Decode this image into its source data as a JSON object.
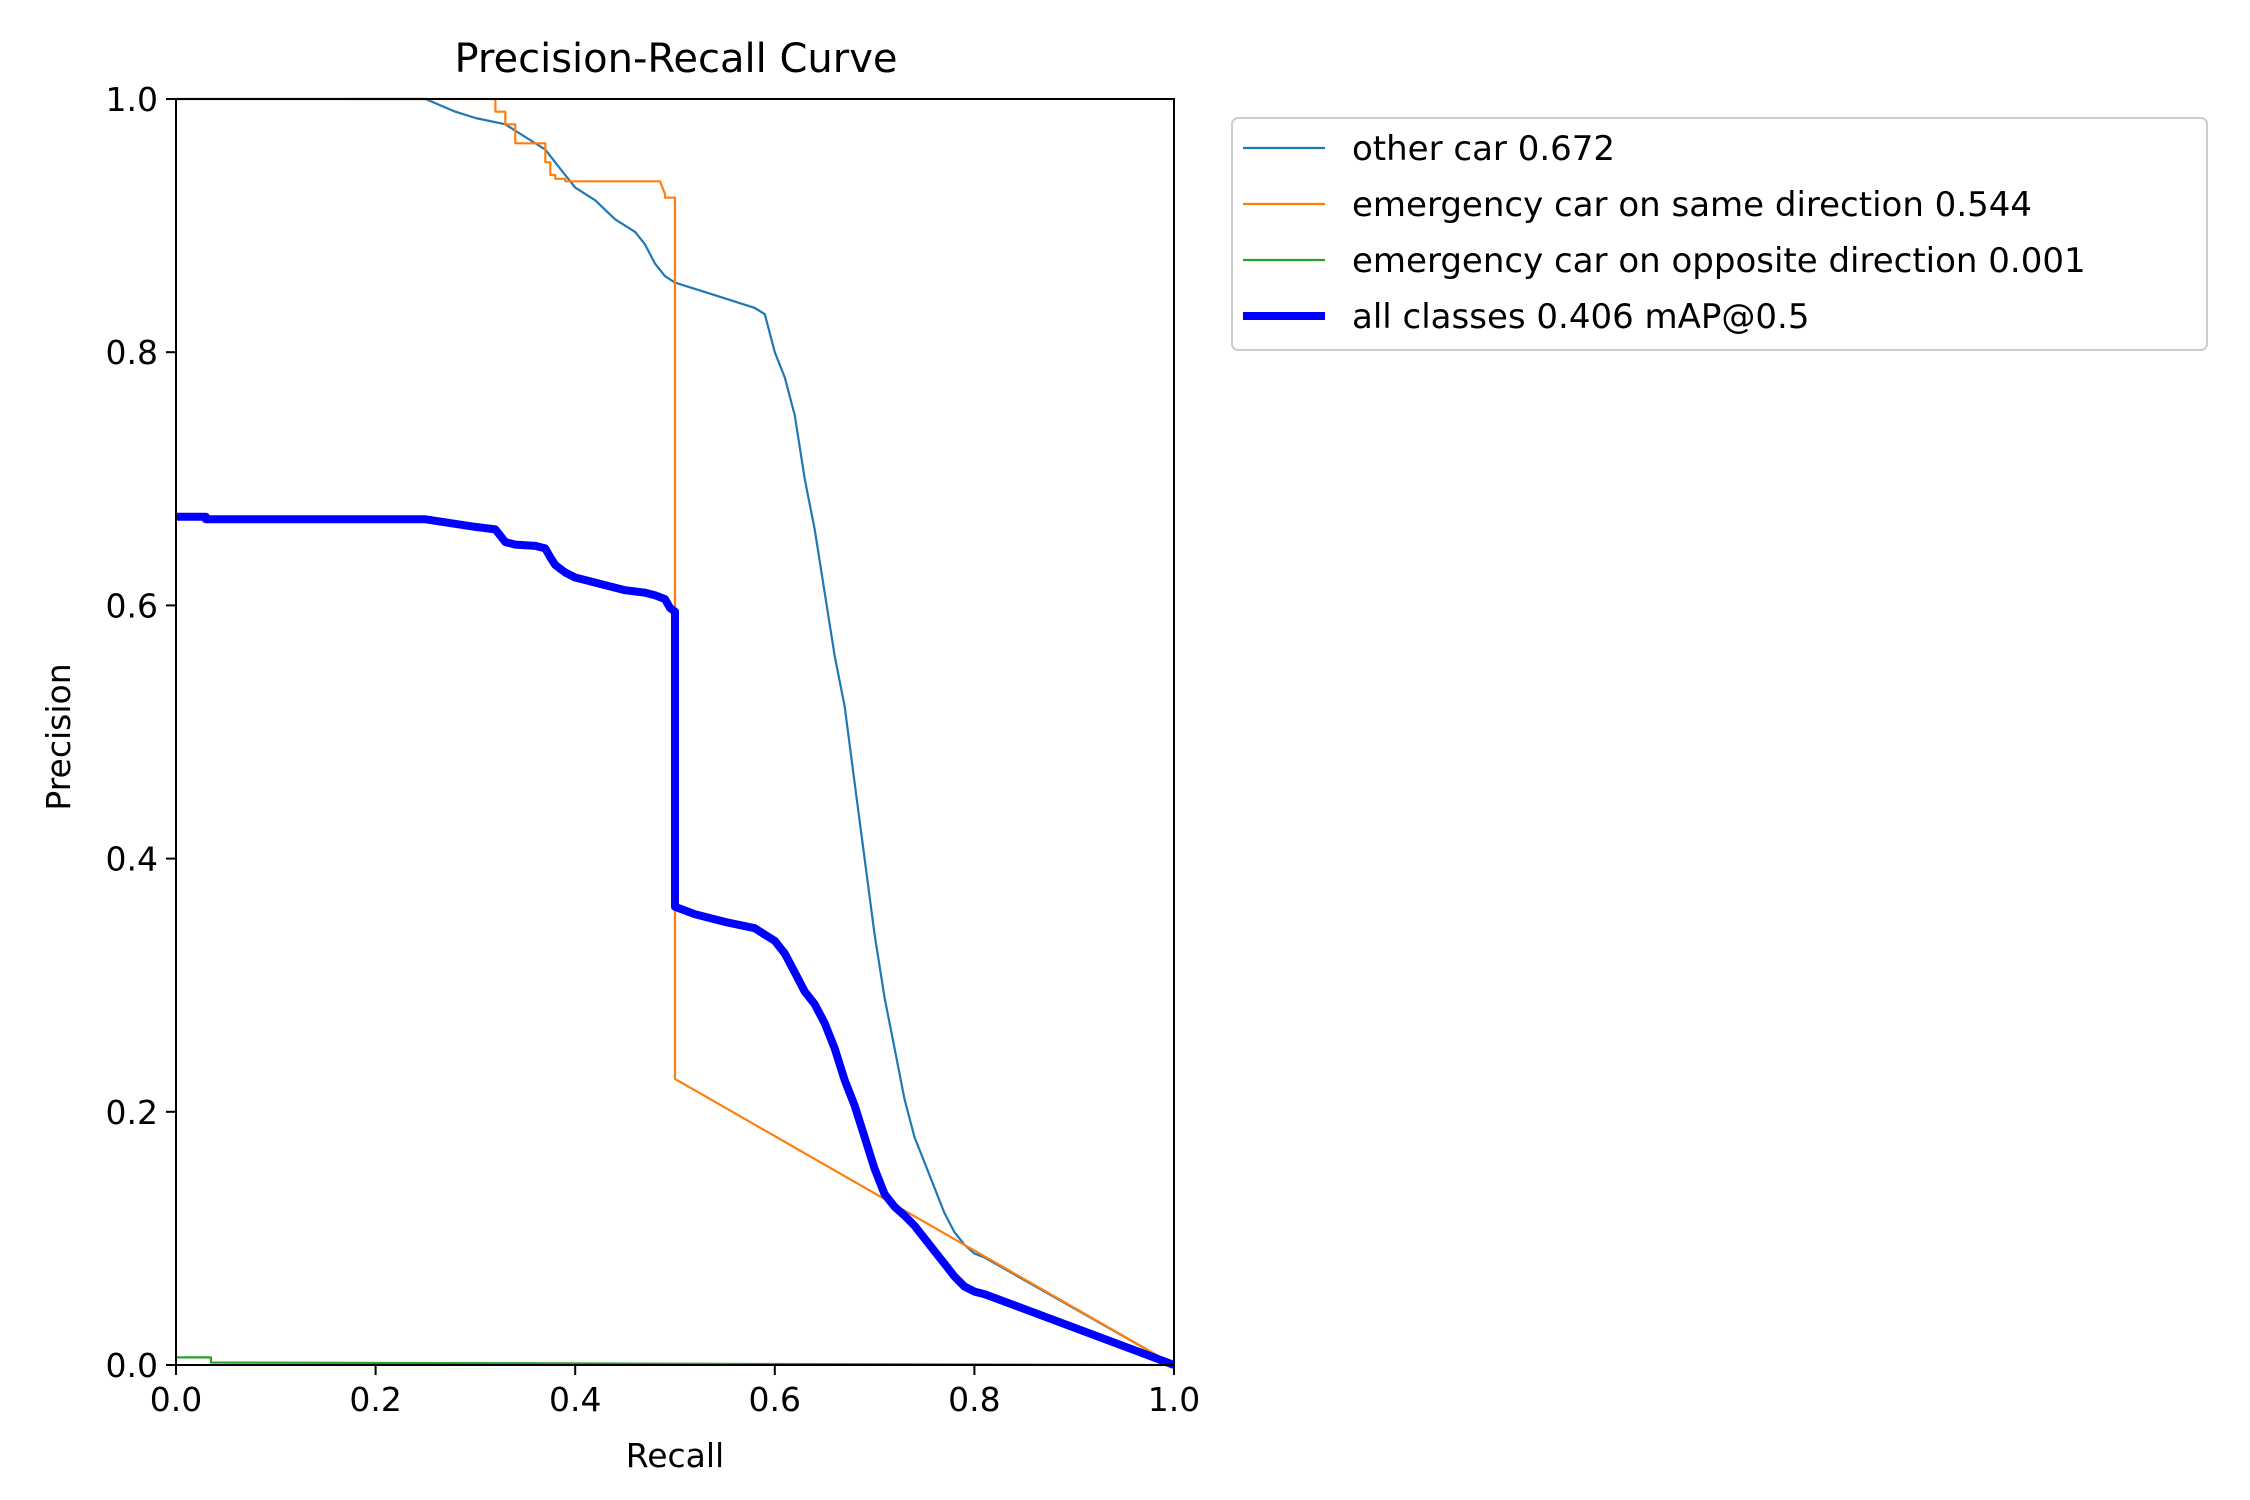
{
  "chart_data": {
    "type": "line",
    "title": "Precision-Recall Curve",
    "xlabel": "Recall",
    "ylabel": "Precision",
    "xlim": [
      0,
      1
    ],
    "ylim": [
      0,
      1
    ],
    "xticks": [
      "0.0",
      "0.2",
      "0.4",
      "0.6",
      "0.8",
      "1.0"
    ],
    "yticks": [
      "0.0",
      "0.2",
      "0.4",
      "0.6",
      "0.8",
      "1.0"
    ],
    "grid": false,
    "legend_position": "outside-right-top",
    "series": [
      {
        "name": "other car 0.672",
        "color": "#1f77b4",
        "width": "thin",
        "x": [
          0,
          0.17,
          0.25,
          0.28,
          0.3,
          0.33,
          0.35,
          0.37,
          0.38,
          0.39,
          0.4,
          0.42,
          0.44,
          0.46,
          0.47,
          0.48,
          0.49,
          0.5,
          0.52,
          0.54,
          0.56,
          0.58,
          0.59,
          0.6,
          0.61,
          0.62,
          0.63,
          0.64,
          0.65,
          0.66,
          0.67,
          0.68,
          0.69,
          0.7,
          0.71,
          0.72,
          0.73,
          0.74,
          0.75,
          0.76,
          0.77,
          0.78,
          0.79,
          0.8,
          0.81,
          1.0
        ],
        "y": [
          1.0,
          1.0,
          1.0,
          0.99,
          0.985,
          0.98,
          0.97,
          0.96,
          0.95,
          0.94,
          0.93,
          0.92,
          0.905,
          0.895,
          0.885,
          0.87,
          0.86,
          0.855,
          0.85,
          0.845,
          0.84,
          0.835,
          0.83,
          0.8,
          0.78,
          0.75,
          0.7,
          0.66,
          0.61,
          0.56,
          0.52,
          0.46,
          0.4,
          0.34,
          0.29,
          0.25,
          0.21,
          0.18,
          0.16,
          0.14,
          0.12,
          0.105,
          0.095,
          0.088,
          0.085,
          0.0
        ]
      },
      {
        "name": "emergency car on same direction 0.544",
        "color": "#ff7f0e",
        "width": "thin",
        "x": [
          0.17,
          0.32,
          0.32,
          0.33,
          0.33,
          0.34,
          0.34,
          0.37,
          0.37,
          0.375,
          0.375,
          0.38,
          0.38,
          0.39,
          0.39,
          0.485,
          0.49,
          0.49,
          0.5,
          0.5,
          0.5,
          1.0
        ],
        "y": [
          1.0,
          1.0,
          0.99,
          0.99,
          0.98,
          0.98,
          0.965,
          0.965,
          0.95,
          0.95,
          0.94,
          0.94,
          0.937,
          0.937,
          0.935,
          0.935,
          0.925,
          0.922,
          0.922,
          0.85,
          0.226,
          0.0
        ]
      },
      {
        "name": "emergency car on opposite direction 0.001",
        "color": "#2ca02c",
        "width": "thin",
        "x": [
          0,
          0.035,
          0.035,
          1.0
        ],
        "y": [
          0.006,
          0.006,
          0.002,
          0.0
        ]
      },
      {
        "name": "all classes 0.406 mAP@0.5",
        "color": "#0000ff",
        "width": "thick",
        "x": [
          0,
          0.03,
          0.03,
          0.2,
          0.25,
          0.3,
          0.32,
          0.33,
          0.34,
          0.36,
          0.37,
          0.375,
          0.38,
          0.39,
          0.4,
          0.42,
          0.45,
          0.47,
          0.48,
          0.49,
          0.495,
          0.5,
          0.5,
          0.52,
          0.55,
          0.58,
          0.59,
          0.6,
          0.61,
          0.62,
          0.63,
          0.64,
          0.65,
          0.66,
          0.67,
          0.68,
          0.69,
          0.7,
          0.71,
          0.72,
          0.73,
          0.74,
          0.75,
          0.76,
          0.77,
          0.78,
          0.79,
          0.8,
          0.81,
          1.0
        ],
        "y": [
          0.67,
          0.67,
          0.668,
          0.668,
          0.668,
          0.662,
          0.66,
          0.65,
          0.648,
          0.647,
          0.645,
          0.638,
          0.632,
          0.626,
          0.622,
          0.618,
          0.612,
          0.61,
          0.608,
          0.605,
          0.598,
          0.595,
          0.362,
          0.356,
          0.35,
          0.345,
          0.34,
          0.335,
          0.325,
          0.31,
          0.295,
          0.285,
          0.27,
          0.25,
          0.225,
          0.205,
          0.18,
          0.155,
          0.135,
          0.125,
          0.118,
          0.11,
          0.1,
          0.09,
          0.08,
          0.07,
          0.062,
          0.058,
          0.056,
          0.0
        ]
      }
    ]
  }
}
